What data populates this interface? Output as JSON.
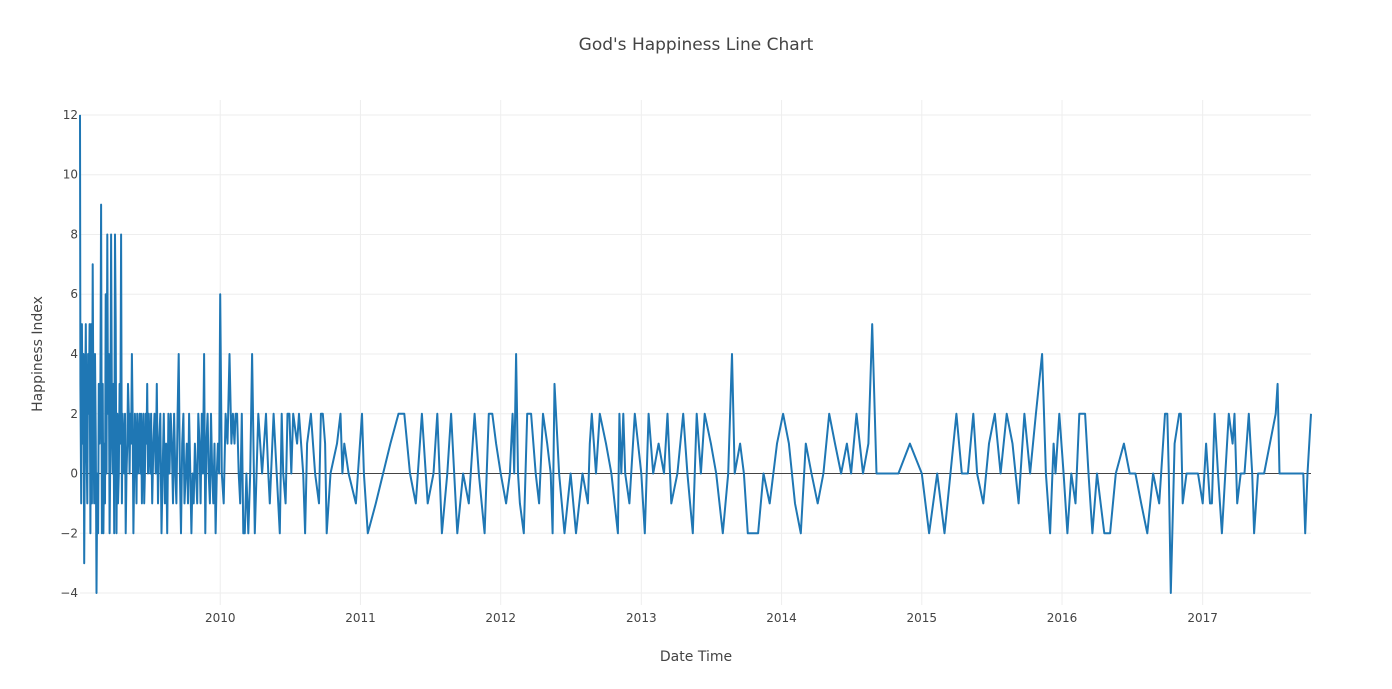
{
  "chart_data": {
    "type": "line",
    "title": "God's Happiness Line Chart",
    "xlabel": "Date Time",
    "ylabel": "Happiness Index",
    "xlim": [
      "2009-01-01",
      "2017-10-10"
    ],
    "ylim": [
      -4.4,
      12.5
    ],
    "x_ticks": [
      "2010",
      "2011",
      "2012",
      "2013",
      "2014",
      "2015",
      "2016",
      "2017"
    ],
    "x_tick_dates": [
      "2010-01-01",
      "2011-01-01",
      "2012-01-01",
      "2013-01-01",
      "2014-01-01",
      "2015-01-01",
      "2016-01-01",
      "2017-01-01"
    ],
    "y_ticks": [
      12,
      10,
      8,
      6,
      4,
      2,
      0,
      -2,
      -4
    ],
    "y_tick_labels": [
      "12",
      "10",
      "8",
      "6",
      "4",
      "2",
      "0",
      "−2",
      "−4"
    ],
    "grid": true,
    "zero_line": true,
    "line_color": "#1f77b4",
    "series": [
      {
        "x": [
          "2009-01-01",
          "2009-01-02",
          "2009-01-04",
          "2009-01-06",
          "2009-01-08",
          "2009-01-10",
          "2009-01-12",
          "2009-01-14",
          "2009-01-16",
          "2009-01-18",
          "2009-01-20",
          "2009-01-22",
          "2009-01-24",
          "2009-01-26",
          "2009-01-28",
          "2009-01-30",
          "2009-02-01",
          "2009-02-03",
          "2009-02-05",
          "2009-02-07",
          "2009-02-09",
          "2009-02-11",
          "2009-02-13",
          "2009-02-15",
          "2009-02-17",
          "2009-02-19",
          "2009-02-21",
          "2009-02-23",
          "2009-02-25",
          "2009-02-27",
          "2009-03-01",
          "2009-03-03",
          "2009-03-05",
          "2009-03-07",
          "2009-03-09",
          "2009-03-11",
          "2009-03-13",
          "2009-03-15",
          "2009-03-17",
          "2009-03-19",
          "2009-03-21",
          "2009-03-23",
          "2009-03-25",
          "2009-03-27",
          "2009-03-29",
          "2009-03-31",
          "2009-04-02",
          "2009-04-04",
          "2009-04-06",
          "2009-04-08",
          "2009-04-10",
          "2009-04-12",
          "2009-04-14",
          "2009-04-16",
          "2009-04-18",
          "2009-04-20",
          "2009-04-22",
          "2009-04-24",
          "2009-04-26",
          "2009-04-28",
          "2009-04-30",
          "2009-05-02",
          "2009-05-04",
          "2009-05-06",
          "2009-05-08",
          "2009-05-10",
          "2009-05-12",
          "2009-05-14",
          "2009-05-16",
          "2009-05-18",
          "2009-05-20",
          "2009-05-22",
          "2009-05-24",
          "2009-05-26",
          "2009-05-28",
          "2009-05-30",
          "2009-06-01",
          "2009-06-03",
          "2009-06-05",
          "2009-06-07",
          "2009-06-09",
          "2009-06-11",
          "2009-06-13",
          "2009-06-15",
          "2009-06-17",
          "2009-06-19",
          "2009-06-21",
          "2009-06-23",
          "2009-06-25",
          "2009-06-27",
          "2009-06-29",
          "2009-07-01",
          "2009-07-03",
          "2009-07-05",
          "2009-07-08",
          "2009-07-11",
          "2009-07-14",
          "2009-07-17",
          "2009-07-20",
          "2009-07-23",
          "2009-07-26",
          "2009-07-29",
          "2009-08-01",
          "2009-08-04",
          "2009-08-07",
          "2009-08-10",
          "2009-08-13",
          "2009-08-16",
          "2009-08-19",
          "2009-08-22",
          "2009-08-25",
          "2009-08-28",
          "2009-08-31",
          "2009-09-03",
          "2009-09-06",
          "2009-09-09",
          "2009-09-12",
          "2009-09-15",
          "2009-09-18",
          "2009-09-21",
          "2009-09-24",
          "2009-09-27",
          "2009-09-30",
          "2009-10-03",
          "2009-10-06",
          "2009-10-09",
          "2009-10-12",
          "2009-10-15",
          "2009-10-18",
          "2009-10-21",
          "2009-10-24",
          "2009-10-27",
          "2009-10-30",
          "2009-11-02",
          "2009-11-05",
          "2009-11-08",
          "2009-11-11",
          "2009-11-14",
          "2009-11-17",
          "2009-11-20",
          "2009-11-23",
          "2009-11-26",
          "2009-11-29",
          "2009-12-02",
          "2009-12-05",
          "2009-12-08",
          "2009-12-11",
          "2009-12-14",
          "2009-12-17",
          "2009-12-20",
          "2009-12-23",
          "2009-12-26",
          "2009-12-29",
          "2010-01-01",
          "2010-01-05",
          "2010-01-10",
          "2010-01-15",
          "2010-01-20",
          "2010-01-25",
          "2010-01-30",
          "2010-02-03",
          "2010-02-07",
          "2010-02-10",
          "2010-02-14",
          "2010-02-18",
          "2010-02-22",
          "2010-02-26",
          "2010-03-02",
          "2010-03-06",
          "2010-03-10",
          "2010-03-15",
          "2010-03-20",
          "2010-03-25",
          "2010-04-01",
          "2010-04-10",
          "2010-04-20",
          "2010-04-30",
          "2010-05-03",
          "2010-05-06",
          "2010-05-10",
          "2010-05-20",
          "2010-05-28",
          "2010-06-05",
          "2010-06-10",
          "2010-06-14",
          "2010-06-20",
          "2010-06-25",
          "2010-06-30",
          "2010-07-05",
          "2010-07-10",
          "2010-07-20",
          "2010-07-25",
          "2010-08-05",
          "2010-08-10",
          "2010-08-15",
          "2010-08-25",
          "2010-09-05",
          "2010-09-15",
          "2010-09-20",
          "2010-09-25",
          "2010-10-01",
          "2010-10-05",
          "2010-10-15",
          "2010-11-01",
          "2010-11-10",
          "2010-11-15",
          "2010-11-20",
          "2010-12-01",
          "2010-12-20",
          "2011-01-05",
          "2011-01-10",
          "2011-01-20",
          "2011-02-10",
          "2011-03-01",
          "2011-03-20",
          "2011-04-10",
          "2011-04-25",
          "2011-05-10",
          "2011-05-25",
          "2011-06-10",
          "2011-06-25",
          "2011-07-10",
          "2011-07-20",
          "2011-08-01",
          "2011-08-15",
          "2011-08-25",
          "2011-09-10",
          "2011-09-25",
          "2011-10-10",
          "2011-10-25",
          "2011-11-05",
          "2011-11-20",
          "2011-12-01",
          "2011-12-10",
          "2011-12-20",
          "2012-01-01",
          "2012-01-15",
          "2012-01-25",
          "2012-02-01",
          "2012-02-05",
          "2012-02-10",
          "2012-02-15",
          "2012-02-20",
          "2012-03-01",
          "2012-03-10",
          "2012-03-20",
          "2012-04-01",
          "2012-04-10",
          "2012-04-20",
          "2012-05-01",
          "2012-05-10",
          "2012-05-15",
          "2012-05-20",
          "2012-06-01",
          "2012-06-15",
          "2012-07-01",
          "2012-07-15",
          "2012-08-01",
          "2012-08-15",
          "2012-08-20",
          "2012-08-25",
          "2012-09-05",
          "2012-09-15",
          "2012-10-01",
          "2012-10-15",
          "2012-11-01",
          "2012-11-05",
          "2012-11-10",
          "2012-11-15",
          "2012-11-20",
          "2012-12-01",
          "2012-12-15",
          "2013-01-01",
          "2013-01-10",
          "2013-01-20",
          "2013-02-01",
          "2013-02-15",
          "2013-03-01",
          "2013-03-10",
          "2013-03-20",
          "2013-04-05",
          "2013-04-20",
          "2013-05-01",
          "2013-05-15",
          "2013-05-25",
          "2013-06-05",
          "2013-06-15",
          "2013-07-01",
          "2013-07-15",
          "2013-08-01",
          "2013-08-15",
          "2013-08-25",
          "2013-09-01",
          "2013-09-15",
          "2013-09-25",
          "2013-10-05",
          "2013-10-15",
          "2013-11-01",
          "2013-11-15",
          "2013-12-01",
          "2013-12-20",
          "2014-01-05",
          "2014-01-20",
          "2014-02-05",
          "2014-02-20",
          "2014-03-05",
          "2014-03-20",
          "2014-04-05",
          "2014-04-20",
          "2014-05-05",
          "2014-05-20",
          "2014-06-05",
          "2014-06-20",
          "2014-07-01",
          "2014-07-15",
          "2014-08-01",
          "2014-08-15",
          "2014-08-25",
          "2014-09-05",
          "2014-09-10",
          "2014-09-15",
          "2014-10-01",
          "2014-11-01",
          "2014-12-01",
          "2015-01-01",
          "2015-01-20",
          "2015-02-10",
          "2015-03-01",
          "2015-04-01",
          "2015-04-15",
          "2015-05-01",
          "2015-05-15",
          "2015-05-25",
          "2015-06-10",
          "2015-06-25",
          "2015-07-10",
          "2015-07-25",
          "2015-08-10",
          "2015-08-25",
          "2015-09-10",
          "2015-09-25",
          "2015-10-10",
          "2015-10-25",
          "2015-11-10",
          "2015-11-20",
          "2015-12-01",
          "2015-12-10",
          "2015-12-15",
          "2015-12-25",
          "2016-01-05",
          "2016-01-15",
          "2016-01-25",
          "2016-02-05",
          "2016-02-15",
          "2016-03-01",
          "2016-03-10",
          "2016-03-20",
          "2016-04-01",
          "2016-04-20",
          "2016-05-05",
          "2016-05-20",
          "2016-06-10",
          "2016-06-25",
          "2016-07-10",
          "2016-07-25",
          "2016-08-10",
          "2016-08-25",
          "2016-09-10",
          "2016-09-25",
          "2016-10-01",
          "2016-10-05",
          "2016-10-10",
          "2016-10-20",
          "2016-11-01",
          "2016-11-05",
          "2016-11-10",
          "2016-11-20",
          "2016-12-01",
          "2016-12-10",
          "2016-12-20",
          "2017-01-01",
          "2017-01-10",
          "2017-01-20",
          "2017-01-25",
          "2017-02-01",
          "2017-02-10",
          "2017-02-20",
          "2017-03-01",
          "2017-03-10",
          "2017-03-20",
          "2017-03-25",
          "2017-04-01",
          "2017-04-10",
          "2017-04-20",
          "2017-05-01",
          "2017-05-10",
          "2017-05-15",
          "2017-05-25",
          "2017-06-10",
          "2017-06-25",
          "2017-07-10",
          "2017-07-15",
          "2017-07-20",
          "2017-08-01",
          "2017-08-15",
          "2017-09-01",
          "2017-09-10",
          "2017-09-20",
          "2017-09-25",
          "2017-10-01",
          "2017-10-10"
        ],
        "y": [
          12,
          3,
          -1,
          5,
          1,
          4,
          -3,
          2,
          5,
          1,
          -1,
          4,
          2,
          5,
          -2,
          5,
          -1,
          7,
          2,
          -1,
          4,
          1,
          -4,
          0,
          -2,
          3,
          1,
          3,
          9,
          -2,
          3,
          -2,
          1,
          -1,
          6,
          0,
          8,
          2,
          4,
          -2,
          1,
          8,
          2,
          0,
          3,
          -2,
          8,
          5,
          -2,
          2,
          -1,
          0,
          3,
          1,
          8,
          -1,
          2,
          1,
          0,
          2,
          -2,
          0,
          1,
          3,
          2,
          0,
          2,
          1,
          4,
          2,
          -2,
          0,
          2,
          1,
          -1,
          2,
          0,
          1,
          2,
          0,
          2,
          -1,
          1,
          2,
          -1,
          0,
          2,
          1,
          3,
          0,
          2,
          1,
          0,
          2,
          -1,
          1,
          2,
          0,
          3,
          -1,
          1,
          2,
          -2,
          0,
          2,
          -1,
          1,
          -2,
          2,
          0,
          2,
          1,
          -1,
          2,
          0,
          -1,
          2,
          4,
          0,
          -2,
          1,
          2,
          -1,
          0,
          1,
          -1,
          2,
          0,
          -2,
          0,
          -1,
          1,
          0,
          -1,
          2,
          1,
          -1,
          2,
          0,
          4,
          -2,
          1,
          2,
          0,
          -1,
          2,
          0,
          -1,
          1,
          -2,
          0,
          1,
          0,
          6,
          0,
          -1,
          2,
          1,
          4,
          1,
          2,
          1,
          2,
          2,
          0,
          -1,
          2,
          -2,
          -2,
          0,
          -2,
          0,
          4,
          -2,
          2,
          0,
          2,
          1,
          0,
          -1,
          2,
          0,
          -2,
          2,
          0,
          -1,
          2,
          2,
          0,
          2,
          1,
          2,
          0,
          -2,
          1,
          2,
          0,
          -1,
          2,
          2,
          1,
          -2,
          0,
          1,
          2,
          0,
          1,
          0,
          -1,
          2,
          0,
          -2,
          -1,
          0,
          1,
          2,
          2,
          0,
          -1,
          2,
          -1,
          0,
          2,
          -2,
          0,
          2,
          -2,
          0,
          -1,
          2,
          0,
          -2,
          2,
          2,
          1,
          0,
          -1,
          0,
          2,
          0,
          4,
          0,
          -1,
          -2,
          2,
          2,
          0,
          -1,
          2,
          1,
          0,
          -2,
          3,
          0,
          -2,
          0,
          -2,
          0,
          -1,
          1,
          2,
          0,
          2,
          1,
          0,
          -2,
          2,
          0,
          2,
          0,
          -1,
          2,
          0,
          -2,
          2,
          0,
          1,
          0,
          2,
          -1,
          0,
          2,
          0,
          -2,
          2,
          0,
          2,
          1,
          0,
          -2,
          0,
          4,
          0,
          1,
          0,
          -2,
          -2,
          -2,
          0,
          -1,
          1,
          2,
          1,
          -1,
          -2,
          1,
          0,
          -1,
          0,
          2,
          1,
          0,
          1,
          0,
          2,
          0,
          1,
          5,
          0,
          0,
          0,
          0,
          0,
          1,
          0,
          -2,
          0,
          -2,
          2,
          0,
          0,
          2,
          0,
          -1,
          1,
          2,
          0,
          2,
          1,
          -1,
          2,
          0,
          2,
          4,
          0,
          -2,
          1,
          0,
          2,
          0,
          -2,
          0,
          -1,
          2,
          2,
          0,
          -2,
          0,
          -2,
          -2,
          0,
          1,
          0,
          0,
          -1,
          -2,
          0,
          -1,
          2,
          2,
          0,
          -4,
          1,
          2,
          2,
          -1,
          0,
          0,
          0,
          0,
          -1,
          1,
          -1,
          -1,
          2,
          0,
          -2,
          0,
          2,
          1,
          2,
          -1,
          0,
          0,
          2,
          0,
          -2,
          0,
          0,
          1,
          2,
          3,
          0,
          0,
          0,
          0,
          0,
          0,
          -2,
          0,
          2
        ]
      }
    ]
  }
}
